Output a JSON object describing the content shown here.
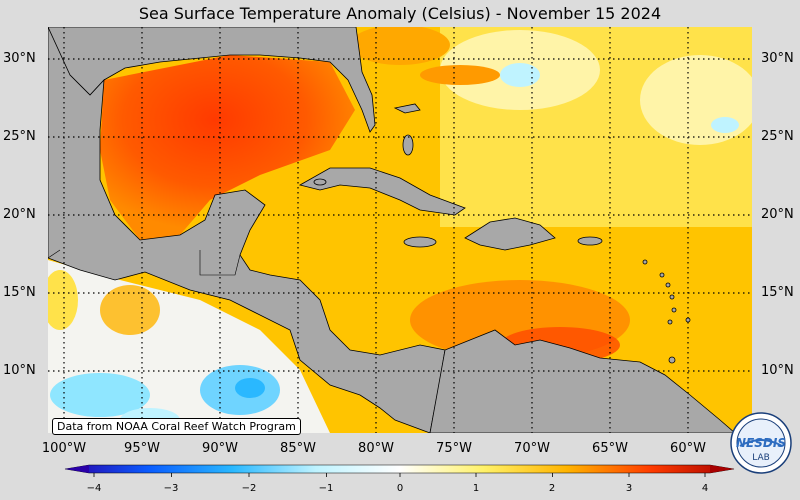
{
  "title": "Sea Surface Temperature Anomaly (Celsius) - November 15 2024",
  "lat_labels": [
    "30°N",
    "25°N",
    "20°N",
    "15°N",
    "10°N"
  ],
  "lon_labels": [
    "100°W",
    "95°W",
    "90°W",
    "85°W",
    "80°W",
    "75°W",
    "70°W",
    "65°W",
    "60°W"
  ],
  "credit": "Data from NOAA Coral Reef Watch Program",
  "colorbar": {
    "ticks": [
      "−4",
      "−3",
      "−2",
      "−1",
      "0",
      "1",
      "2",
      "3",
      "4"
    ],
    "colors": [
      "#2a00a8",
      "#0a5cff",
      "#2ab8ff",
      "#bff3ff",
      "#ffffff",
      "#fff26a",
      "#ffb400",
      "#ff3c00",
      "#a80000"
    ]
  },
  "logo": {
    "text": "NESDIS LAB",
    "icon": "nesdis-logo-icon"
  }
}
